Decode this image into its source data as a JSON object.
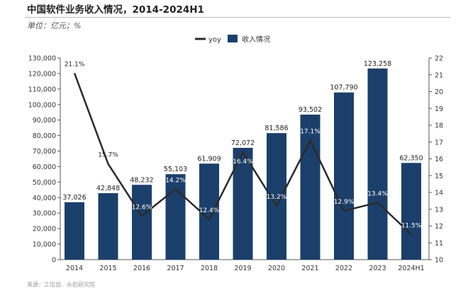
{
  "chart_data": {
    "type": "bar+line",
    "title": "中国软件业务收入情况，2014-2024H1",
    "unit_label": "单位：亿元；%",
    "source": "来源：工信部、头豹研究院",
    "categories": [
      "2014",
      "2015",
      "2016",
      "2017",
      "2018",
      "2019",
      "2020",
      "2021",
      "2022",
      "2023",
      "2024H1"
    ],
    "series": [
      {
        "name": "收入情况",
        "type": "bar",
        "axis": "left",
        "color": "#1b3f6b",
        "values": [
          37026,
          42848,
          48232,
          55103,
          61909,
          72072,
          81586,
          93502,
          107790,
          123258,
          62350
        ],
        "labels": [
          "37,026",
          "42,848",
          "48,232",
          "55,103",
          "61,909",
          "72,072",
          "81,586",
          "93,502",
          "107,790",
          "123,258",
          "62,350"
        ]
      },
      {
        "name": "yoy",
        "type": "line",
        "axis": "right",
        "color": "#2b2b2b",
        "values": [
          21.1,
          15.7,
          12.6,
          14.2,
          12.4,
          16.4,
          13.2,
          17.1,
          12.9,
          13.4,
          11.5
        ],
        "labels": [
          "21.1%",
          "15.7%",
          "12.6%",
          "14.2%",
          "12.4%",
          "16.4%",
          "13.2%",
          "17.1%",
          "12.9%",
          "13.4%",
          "11.5%"
        ]
      }
    ],
    "left_axis": {
      "range": [
        0,
        130000
      ],
      "step": 10000
    },
    "right_axis": {
      "range": [
        10,
        22
      ],
      "step": 1
    },
    "legend": {
      "position": "top-right",
      "items": [
        "yoy",
        "收入情况"
      ]
    },
    "grid": false
  }
}
